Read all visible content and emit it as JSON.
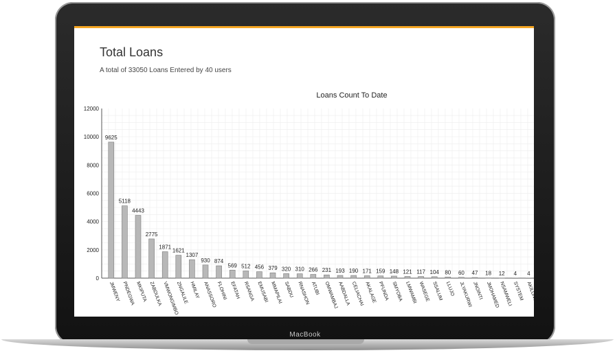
{
  "app": {
    "title": "Total Loans",
    "subtitle": "A total of 33050 Loans Entered by 40 users",
    "device_label": "MacBook"
  },
  "colors": {
    "bar": "#b8b8b8",
    "bar_stroke": "#7a7a7a",
    "accent": "#f5a623",
    "grid": "#ececec"
  },
  "chart_data": {
    "type": "bar",
    "title": "Loans Count To Date",
    "xlabel": "",
    "ylabel": "",
    "ylim": [
      0,
      12000
    ],
    "yticks": [
      0,
      2000,
      4000,
      6000,
      8000,
      10000,
      12000
    ],
    "grid": true,
    "categories": [
      "JMWENY",
      "PNDEGWA",
      "MKIPUTA",
      "ZABDULKA",
      "VMWONGIMBO",
      "ZNGALILE",
      "HMILAY",
      "ANASSORO",
      "FLOHINI",
      "EFATAH",
      "RSANGA",
      "EMUSABI",
      "MMAPILAI",
      "SABDU",
      "RNASHON",
      "ATUBI",
      "OMWAMBAJ",
      "AABDALLA",
      "CELIACHAI",
      "AKALAGE",
      "PFUNDA",
      "SMYOBA",
      "LMWAMBI",
      "WASEGE",
      "SSALUM",
      "LLUJO",
      "JLYAKURWI",
      "JNOINTI",
      "JMOHAMED",
      "NSAMWELI",
      "SYSTEM",
      "AKILUNGU"
    ],
    "values": [
      9625,
      5118,
      4443,
      2775,
      1871,
      1621,
      1307,
      930,
      874,
      569,
      512,
      456,
      379,
      320,
      310,
      266,
      231,
      193,
      190,
      171,
      159,
      148,
      121,
      117,
      104,
      80,
      60,
      47,
      18,
      12,
      4,
      4
    ]
  }
}
